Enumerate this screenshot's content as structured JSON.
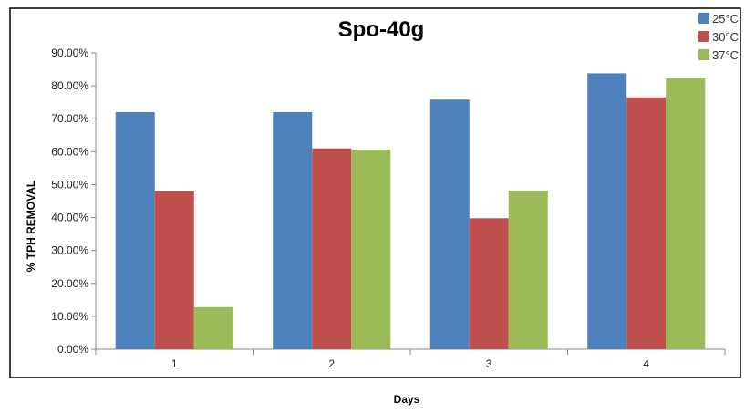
{
  "chart_data": {
    "type": "bar",
    "title": "Spo-40g",
    "xlabel": "Days",
    "ylabel": "% TPH REMOVAL",
    "categories": [
      "1",
      "2",
      "3",
      "4"
    ],
    "series": [
      {
        "name": "25°C",
        "color": "#4f81bd",
        "values": [
          72.0,
          72.0,
          75.8,
          83.8
        ]
      },
      {
        "name": "30°C",
        "color": "#c0504d",
        "values": [
          48.0,
          61.0,
          39.8,
          76.5
        ]
      },
      {
        "name": "37°C",
        "color": "#9bbb59",
        "values": [
          12.8,
          60.6,
          48.2,
          82.3
        ]
      }
    ],
    "ylim": [
      0,
      90
    ],
    "ytick_step": 10,
    "ytick_labels": [
      "0.00%",
      "10.00%",
      "20.00%",
      "30.00%",
      "40.00%",
      "50.00%",
      "60.00%",
      "70.00%",
      "80.00%",
      "90.00%"
    ],
    "grid": false,
    "legend_position": "top-right"
  }
}
